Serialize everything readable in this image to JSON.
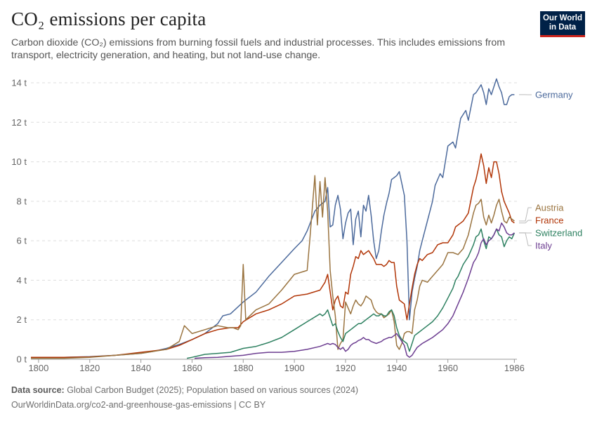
{
  "header": {
    "title": "CO₂ emissions per capita",
    "subtitle": "Carbon dioxide (CO₂) emissions from burning fossil fuels and industrial processes. This includes emissions from transport, electricity generation, and heating, but not land-use change.",
    "logo_line1": "Our World",
    "logo_line2": "in Data"
  },
  "footer": {
    "source_label": "Data source:",
    "source_text": "Global Carbon Budget (2025); Population based on various sources (2024)",
    "url_line": "OurWorldinData.org/co2-and-greenhouse-gas-emissions | CC BY"
  },
  "colors": {
    "Germany": "#4c6a9c",
    "France": "#b13507",
    "Austria": "#9a7440",
    "Switzerland": "#2d8060",
    "Italy": "#6d3e91",
    "grid": "#dddddd",
    "axis_text": "#666666",
    "logo_bg": "#002147",
    "logo_accent": "#ce261e"
  },
  "chart_data": {
    "type": "line",
    "title": "CO₂ emissions per capita",
    "xlabel": "",
    "ylabel": "",
    "xlim": [
      1797,
      1987
    ],
    "ylim": [
      0,
      14
    ],
    "x_ticks": [
      1800,
      1820,
      1840,
      1860,
      1880,
      1900,
      1920,
      1940,
      1960,
      1986
    ],
    "x_tick_labels": [
      "1800",
      "1820",
      "1840",
      "1860",
      "1880",
      "1900",
      "1920",
      "1940",
      "1960",
      "1986"
    ],
    "y_ticks": [
      0,
      2,
      4,
      6,
      8,
      10,
      12,
      14
    ],
    "y_tick_labels": [
      "0 t",
      "2 t",
      "4 t",
      "6 t",
      "8 t",
      "10 t",
      "12 t",
      "14 t"
    ],
    "grid": "horizontal dashed",
    "legend": "right, end-of-line labels",
    "series": [
      {
        "name": "Germany",
        "x": [
          1797,
          1800,
          1810,
          1820,
          1830,
          1840,
          1845,
          1850,
          1855,
          1860,
          1865,
          1870,
          1872,
          1875,
          1880,
          1885,
          1890,
          1895,
          1900,
          1903,
          1905,
          1908,
          1910,
          1912,
          1913,
          1914,
          1915,
          1916,
          1917,
          1918,
          1919,
          1920,
          1921,
          1922,
          1923,
          1924,
          1925,
          1926,
          1927,
          1928,
          1929,
          1930,
          1931,
          1932,
          1933,
          1934,
          1935,
          1936,
          1937,
          1938,
          1939,
          1940,
          1941,
          1942,
          1943,
          1944,
          1945,
          1946,
          1947,
          1948,
          1949,
          1950,
          1952,
          1954,
          1955,
          1957,
          1958,
          1960,
          1962,
          1963,
          1965,
          1967,
          1968,
          1970,
          1971,
          1972,
          1973,
          1974,
          1975,
          1976,
          1977,
          1978,
          1979,
          1980,
          1981,
          1982,
          1983,
          1984,
          1985,
          1986
        ],
        "y": [
          0.1,
          0.1,
          0.1,
          0.13,
          0.2,
          0.3,
          0.4,
          0.55,
          0.75,
          1.0,
          1.3,
          1.8,
          2.2,
          2.3,
          2.9,
          3.4,
          4.2,
          4.9,
          5.6,
          6.0,
          6.5,
          7.5,
          7.8,
          8.0,
          8.7,
          6.7,
          6.8,
          7.8,
          8.3,
          7.6,
          6.1,
          6.9,
          7.4,
          7.6,
          5.8,
          7.1,
          7.5,
          6.2,
          7.8,
          7.5,
          8.3,
          7.3,
          6.0,
          5.1,
          5.5,
          6.5,
          7.3,
          7.9,
          8.4,
          9.1,
          9.2,
          9.3,
          9.5,
          8.9,
          8.3,
          6.0,
          2.0,
          3.4,
          4.1,
          4.7,
          5.5,
          6.0,
          7.0,
          8.0,
          8.8,
          9.4,
          9.2,
          10.8,
          11.0,
          10.7,
          12.2,
          12.6,
          12.1,
          13.4,
          13.5,
          13.7,
          13.9,
          13.5,
          12.9,
          13.7,
          13.4,
          13.8,
          14.2,
          13.8,
          13.5,
          12.9,
          12.9,
          13.3,
          13.4,
          13.4
        ]
      },
      {
        "name": "France",
        "x": [
          1797,
          1800,
          1810,
          1820,
          1830,
          1840,
          1850,
          1855,
          1860,
          1865,
          1870,
          1875,
          1878,
          1880,
          1885,
          1890,
          1895,
          1900,
          1905,
          1910,
          1912,
          1913,
          1915,
          1916,
          1917,
          1918,
          1919,
          1920,
          1921,
          1922,
          1923,
          1924,
          1925,
          1926,
          1927,
          1928,
          1929,
          1930,
          1931,
          1932,
          1933,
          1934,
          1935,
          1936,
          1937,
          1938,
          1939,
          1940,
          1941,
          1942,
          1943,
          1944,
          1945,
          1946,
          1947,
          1948,
          1949,
          1950,
          1952,
          1954,
          1956,
          1958,
          1960,
          1962,
          1963,
          1965,
          1966,
          1968,
          1970,
          1971,
          1972,
          1973,
          1974,
          1975,
          1976,
          1977,
          1978,
          1979,
          1980,
          1981,
          1982,
          1983,
          1984,
          1985,
          1986
        ],
        "y": [
          0.1,
          0.1,
          0.1,
          0.12,
          0.2,
          0.35,
          0.5,
          0.7,
          1.0,
          1.3,
          1.5,
          1.6,
          1.6,
          1.9,
          2.3,
          2.5,
          2.8,
          3.2,
          3.3,
          3.5,
          3.9,
          4.3,
          2.5,
          3.0,
          3.2,
          2.7,
          2.6,
          3.4,
          3.3,
          4.3,
          4.7,
          5.2,
          5.1,
          5.5,
          5.3,
          5.4,
          5.5,
          5.3,
          5.1,
          4.8,
          4.8,
          4.8,
          4.7,
          4.8,
          5.0,
          4.9,
          4.9,
          3.7,
          3.0,
          2.9,
          2.8,
          2.0,
          2.8,
          3.6,
          4.3,
          4.8,
          5.1,
          5.0,
          5.3,
          5.4,
          5.8,
          5.9,
          5.9,
          6.3,
          6.7,
          6.9,
          7.0,
          7.4,
          8.7,
          9.1,
          9.7,
          10.4,
          9.8,
          8.9,
          9.7,
          9.2,
          10.0,
          10.0,
          9.4,
          8.5,
          8.0,
          7.7,
          7.4,
          7.0,
          6.9
        ]
      },
      {
        "name": "Austria",
        "x": [
          1797,
          1800,
          1810,
          1820,
          1830,
          1840,
          1850,
          1855,
          1857,
          1860,
          1865,
          1870,
          1874,
          1876,
          1878,
          1879,
          1880,
          1881,
          1885,
          1890,
          1895,
          1900,
          1905,
          1906,
          1908,
          1909,
          1910,
          1911,
          1912,
          1913,
          1914,
          1915,
          1916,
          1917,
          1918,
          1919,
          1920,
          1921,
          1922,
          1923,
          1924,
          1925,
          1926,
          1927,
          1928,
          1929,
          1930,
          1931,
          1932,
          1933,
          1934,
          1935,
          1936,
          1937,
          1938,
          1939,
          1940,
          1941,
          1942,
          1943,
          1944,
          1945,
          1946,
          1947,
          1948,
          1949,
          1950,
          1952,
          1954,
          1956,
          1958,
          1960,
          1962,
          1964,
          1966,
          1968,
          1970,
          1971,
          1972,
          1973,
          1974,
          1975,
          1976,
          1977,
          1978,
          1979,
          1980,
          1981,
          1982,
          1983,
          1984,
          1985,
          1986
        ],
        "y": [
          0.05,
          0.05,
          0.05,
          0.1,
          0.2,
          0.3,
          0.5,
          0.9,
          1.7,
          1.3,
          1.5,
          1.7,
          1.6,
          1.6,
          1.5,
          1.7,
          4.8,
          2.0,
          2.5,
          2.8,
          3.5,
          4.3,
          4.5,
          6.0,
          9.3,
          6.8,
          9.0,
          7.2,
          9.2,
          7.5,
          4.5,
          3.2,
          2.2,
          0.5,
          0.8,
          1.0,
          2.9,
          2.6,
          2.3,
          2.7,
          3.0,
          2.8,
          2.7,
          2.9,
          3.2,
          3.1,
          3.0,
          2.6,
          2.4,
          2.3,
          2.3,
          2.1,
          2.2,
          2.3,
          2.5,
          1.9,
          0.7,
          0.5,
          0.8,
          1.3,
          1.4,
          1.4,
          1.3,
          2.5,
          3.0,
          3.7,
          4.0,
          3.9,
          4.2,
          4.5,
          4.8,
          5.4,
          5.4,
          5.3,
          5.6,
          6.3,
          7.4,
          7.8,
          7.9,
          8.1,
          7.2,
          6.8,
          7.3,
          6.9,
          7.3,
          7.8,
          8.1,
          7.5,
          7.0,
          6.9,
          7.2,
          7.1,
          7.0
        ]
      },
      {
        "name": "Switzerland",
        "x": [
          1858,
          1860,
          1865,
          1870,
          1875,
          1880,
          1885,
          1890,
          1895,
          1900,
          1905,
          1910,
          1911,
          1912,
          1913,
          1914,
          1915,
          1916,
          1917,
          1918,
          1919,
          1920,
          1921,
          1922,
          1923,
          1924,
          1925,
          1926,
          1927,
          1928,
          1929,
          1930,
          1931,
          1932,
          1933,
          1934,
          1935,
          1936,
          1937,
          1938,
          1939,
          1940,
          1941,
          1942,
          1943,
          1944,
          1945,
          1946,
          1947,
          1948,
          1949,
          1950,
          1952,
          1954,
          1956,
          1958,
          1960,
          1962,
          1963,
          1964,
          1966,
          1968,
          1970,
          1971,
          1972,
          1973,
          1974,
          1975,
          1976,
          1977,
          1978,
          1979,
          1980,
          1981,
          1982,
          1983,
          1984,
          1985,
          1986
        ],
        "y": [
          0.05,
          0.1,
          0.25,
          0.3,
          0.35,
          0.55,
          0.65,
          0.85,
          1.1,
          1.5,
          1.9,
          2.3,
          2.2,
          2.3,
          2.5,
          2.1,
          1.7,
          1.8,
          1.4,
          1.1,
          0.9,
          1.3,
          1.4,
          1.5,
          1.6,
          1.7,
          1.8,
          1.8,
          1.9,
          2.0,
          2.1,
          2.2,
          2.3,
          2.2,
          2.2,
          2.3,
          2.2,
          2.2,
          2.4,
          2.5,
          2.2,
          1.6,
          1.2,
          1.0,
          0.9,
          0.8,
          0.4,
          0.8,
          1.2,
          1.3,
          1.4,
          1.5,
          1.7,
          1.9,
          2.2,
          2.6,
          3.1,
          3.6,
          4.0,
          4.2,
          4.8,
          5.2,
          5.8,
          6.2,
          6.3,
          6.6,
          6.0,
          5.6,
          6.2,
          6.1,
          6.3,
          6.6,
          6.3,
          6.2,
          5.7,
          6.0,
          6.2,
          6.1,
          6.4
        ]
      },
      {
        "name": "Italy",
        "x": [
          1861,
          1865,
          1870,
          1875,
          1880,
          1885,
          1890,
          1895,
          1900,
          1905,
          1910,
          1912,
          1913,
          1914,
          1915,
          1916,
          1917,
          1918,
          1919,
          1920,
          1921,
          1922,
          1923,
          1924,
          1925,
          1926,
          1927,
          1928,
          1929,
          1930,
          1931,
          1932,
          1933,
          1934,
          1935,
          1936,
          1937,
          1938,
          1939,
          1940,
          1941,
          1942,
          1943,
          1944,
          1945,
          1946,
          1947,
          1948,
          1949,
          1950,
          1952,
          1954,
          1956,
          1958,
          1960,
          1962,
          1964,
          1966,
          1968,
          1970,
          1971,
          1972,
          1973,
          1974,
          1975,
          1976,
          1977,
          1978,
          1979,
          1980,
          1981,
          1982,
          1983,
          1984,
          1985,
          1986
        ],
        "y": [
          0.05,
          0.08,
          0.1,
          0.15,
          0.2,
          0.3,
          0.35,
          0.35,
          0.4,
          0.5,
          0.65,
          0.75,
          0.8,
          0.75,
          0.8,
          0.75,
          0.6,
          0.5,
          0.6,
          0.4,
          0.5,
          0.7,
          0.8,
          0.85,
          0.95,
          1.0,
          1.1,
          1.0,
          1.0,
          0.9,
          0.85,
          0.8,
          0.85,
          0.9,
          1.0,
          1.05,
          1.1,
          1.1,
          1.2,
          1.3,
          1.1,
          0.9,
          0.7,
          0.2,
          0.1,
          0.2,
          0.4,
          0.6,
          0.7,
          0.8,
          0.95,
          1.1,
          1.3,
          1.5,
          1.8,
          2.2,
          2.8,
          3.4,
          4.1,
          4.9,
          5.1,
          5.4,
          5.9,
          6.1,
          5.8,
          6.0,
          6.1,
          6.3,
          6.6,
          6.5,
          6.9,
          6.7,
          6.4,
          6.3,
          6.3,
          6.4
        ]
      }
    ]
  }
}
